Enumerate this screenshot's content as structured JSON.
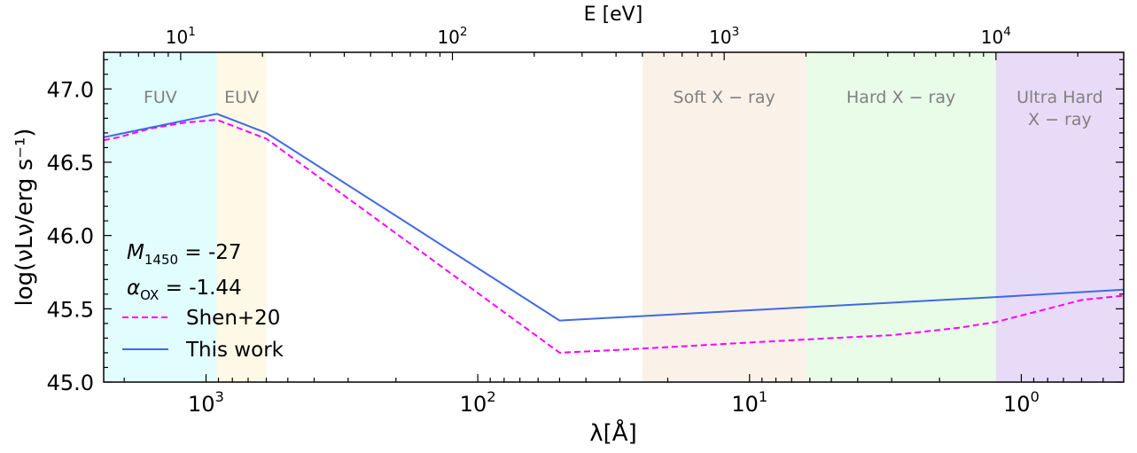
{
  "chart_data": {
    "type": "line",
    "xlabel": "λ[Å]",
    "x2label": "E [eV]",
    "ylabel": "log(νLν/erg s⁻¹)",
    "x_scale": "log",
    "x_reversed": true,
    "xlim": [
      2380,
      0.42
    ],
    "ylim": [
      45.0,
      47.25
    ],
    "x_ticks": [
      {
        "value": 1000,
        "base": "10",
        "exp": "3"
      },
      {
        "value": 100,
        "base": "10",
        "exp": "2"
      },
      {
        "value": 10,
        "base": "10",
        "exp": "1"
      },
      {
        "value": 1,
        "base": "10",
        "exp": "0"
      }
    ],
    "top_ticks": [
      {
        "value": 10,
        "base": "10",
        "exp": "1"
      },
      {
        "value": 100,
        "base": "10",
        "exp": "2"
      },
      {
        "value": 1000,
        "base": "10",
        "exp": "3"
      },
      {
        "value": 10000,
        "base": "10",
        "exp": "4"
      }
    ],
    "y_ticks": [
      "45.0",
      "45.5",
      "46.0",
      "46.5",
      "47.0"
    ],
    "bands": [
      {
        "line1": "FUV",
        "line2": "",
        "from": 2380,
        "to": 912,
        "color": "#b3fbfb"
      },
      {
        "line1": "EUV",
        "line2": "",
        "from": 912,
        "to": 600,
        "color": "#fdf0c4"
      },
      {
        "line1": "Soft X − ray",
        "line2": "",
        "from": 24.8,
        "to": 6.2,
        "color": "#f2dcc9"
      },
      {
        "line1": "Hard X − ray",
        "line2": "",
        "from": 6.2,
        "to": 1.24,
        "color": "#c6f7c6"
      },
      {
        "line1": "Ultra Hard",
        "line2": "X − ray",
        "from": 1.24,
        "to": 0.42,
        "color": "#c5a5ee"
      }
    ],
    "annotations": [
      {
        "symbol": "M",
        "sub": "1450",
        "value": " = -27"
      },
      {
        "symbol": "α",
        "sub": "OX",
        "value": " = -1.44"
      }
    ],
    "series": [
      {
        "name": "Shen+20",
        "color": "#ff00ff",
        "style": "dashed",
        "points": [
          [
            2380,
            46.65
          ],
          [
            2100,
            46.67
          ],
          [
            1600,
            46.73
          ],
          [
            1200,
            46.77
          ],
          [
            912,
            46.79
          ],
          [
            600,
            46.66
          ],
          [
            50,
            45.2
          ],
          [
            30,
            45.22
          ],
          [
            10,
            45.27
          ],
          [
            5,
            45.3
          ],
          [
            3,
            45.32
          ],
          [
            1.7,
            45.37
          ],
          [
            1.24,
            45.41
          ],
          [
            0.8,
            45.5
          ],
          [
            0.6,
            45.56
          ],
          [
            0.42,
            45.59
          ]
        ]
      },
      {
        "name": "This work",
        "color": "#4169e1",
        "style": "solid",
        "points": [
          [
            2380,
            46.67
          ],
          [
            912,
            46.83
          ],
          [
            600,
            46.7
          ],
          [
            50,
            45.42
          ],
          [
            10,
            45.49
          ],
          [
            1.24,
            45.58
          ],
          [
            0.42,
            45.63
          ]
        ]
      }
    ]
  }
}
